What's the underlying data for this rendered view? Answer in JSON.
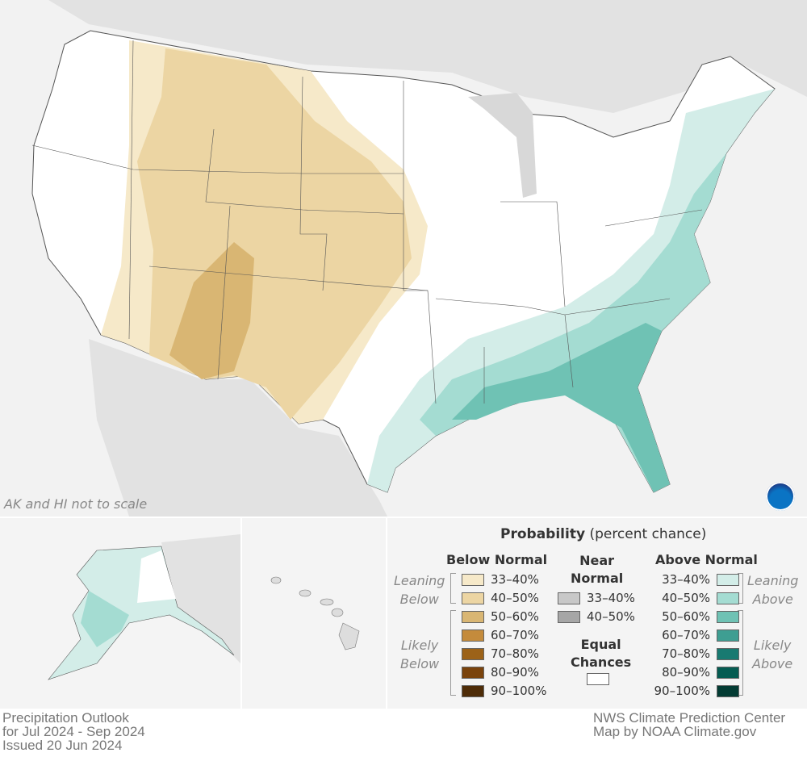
{
  "map": {
    "scale_note": "AK and HI not to scale",
    "logo": "NOAA"
  },
  "legend": {
    "title_bold": "Probability",
    "title_rest": "(percent chance)",
    "below": {
      "heading": "Below Normal",
      "leaning": [
        "Leaning",
        "Below"
      ],
      "likely": [
        "Likely",
        "Below"
      ],
      "items": [
        {
          "label": "33–40%",
          "color": "#f6e9c9"
        },
        {
          "label": "40–50%",
          "color": "#ecd5a3"
        },
        {
          "label": "50–60%",
          "color": "#d9b673"
        },
        {
          "label": "60–70%",
          "color": "#c48b3c"
        },
        {
          "label": "70–80%",
          "color": "#9c6218"
        },
        {
          "label": "80–90%",
          "color": "#7a430c"
        },
        {
          "label": "90–100%",
          "color": "#4e2c08"
        }
      ]
    },
    "near": {
      "heading": [
        "Near",
        "Normal"
      ],
      "items": [
        {
          "label": "33–40%",
          "color": "#c8c8c8"
        },
        {
          "label": "40–50%",
          "color": "#a6a6a6"
        }
      ]
    },
    "equal": {
      "heading": [
        "Equal",
        "Chances"
      ],
      "color": "#ffffff"
    },
    "above": {
      "heading": "Above Normal",
      "leaning": [
        "Leaning",
        "Above"
      ],
      "likely": [
        "Likely",
        "Above"
      ],
      "items": [
        {
          "label": "33–40%",
          "color": "#d3ede8"
        },
        {
          "label": "40–50%",
          "color": "#a4dcd2"
        },
        {
          "label": "50–60%",
          "color": "#6fc2b4"
        },
        {
          "label": "60–70%",
          "color": "#3e9e92"
        },
        {
          "label": "70–80%",
          "color": "#187a71"
        },
        {
          "label": "80–90%",
          "color": "#055c52"
        },
        {
          "label": "90–100%",
          "color": "#033b33"
        }
      ]
    }
  },
  "footer": {
    "left": [
      "Precipitation Outlook",
      "for Jul 2024 - Sep 2024",
      "Issued 20 Jun 2024"
    ],
    "right": [
      "NWS Climate Prediction Center",
      "Map by NOAA Climate.gov"
    ]
  }
}
